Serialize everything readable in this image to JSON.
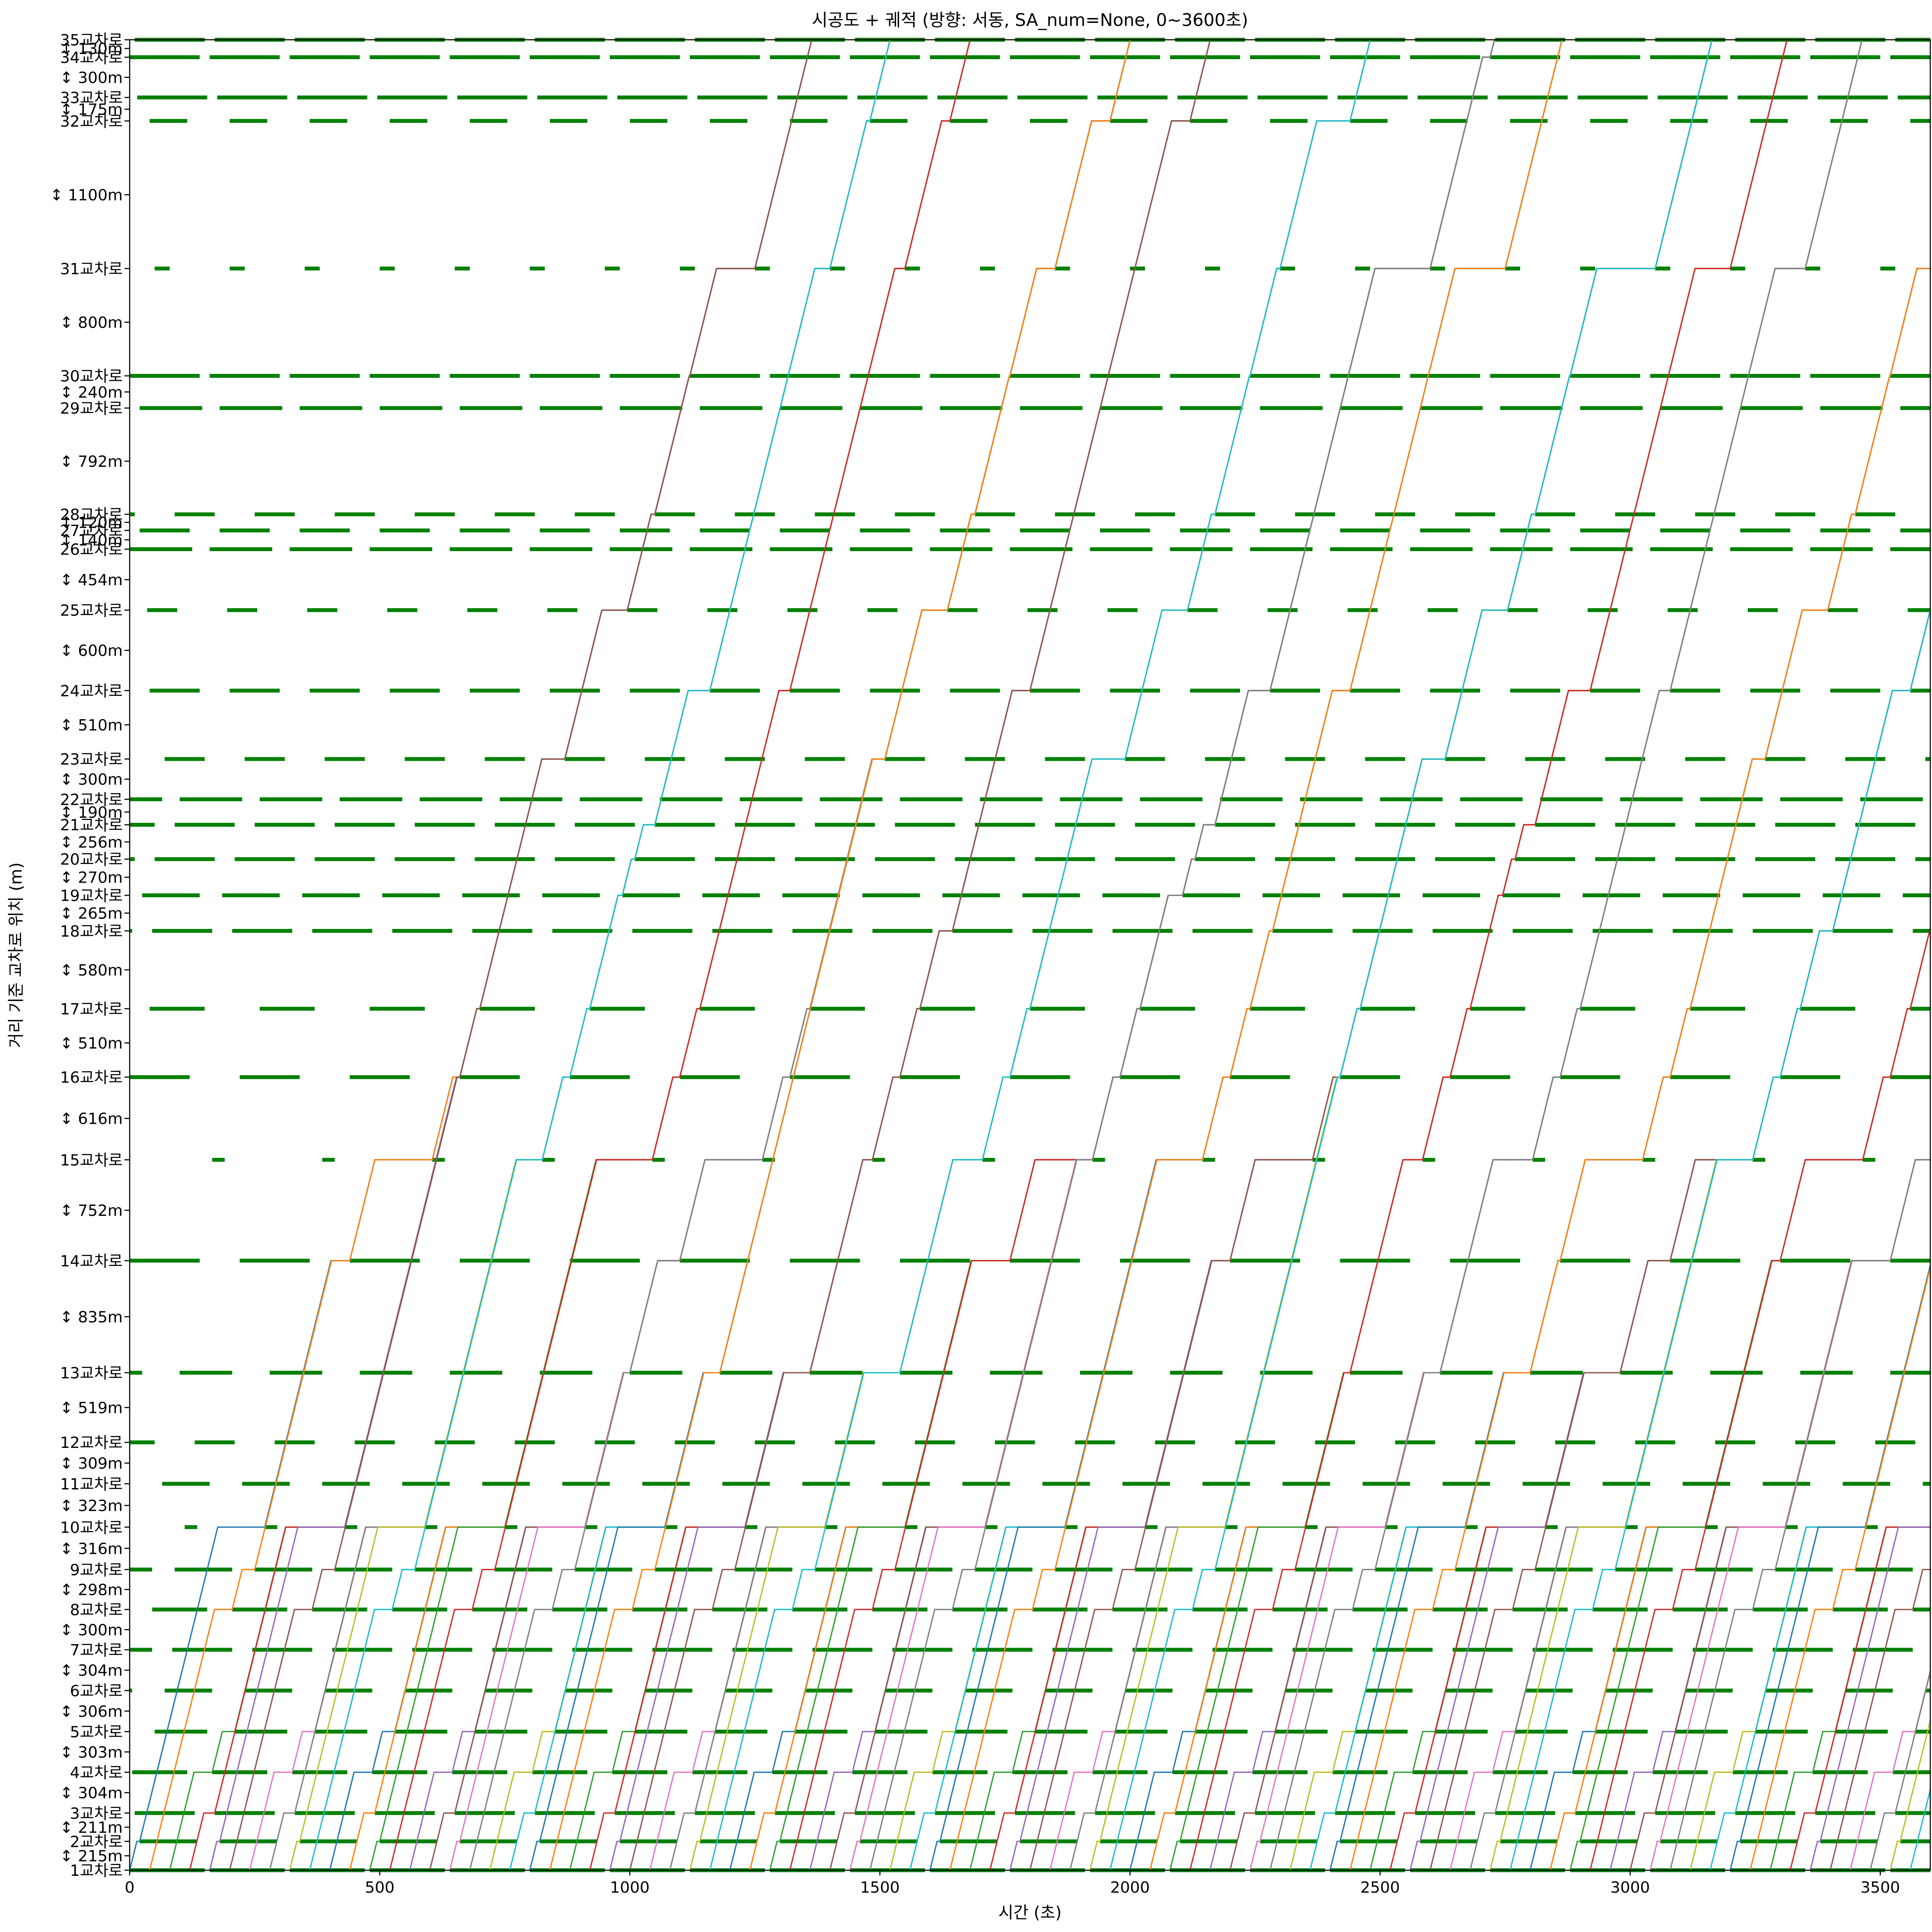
{
  "chart_data": {
    "type": "line",
    "title": "시공도 + 궤적 (방향: 서동, SA_num=None, 0~3600초)",
    "xlabel": "시간 (초)",
    "ylabel": "거리 기준 교차로 위치 (m)",
    "xlim": [
      0,
      3600
    ],
    "x_ticks": [
      0,
      500,
      1000,
      1500,
      2000,
      2500,
      3000,
      3500
    ],
    "grid": false,
    "intersections": [
      {
        "name": "1교차로",
        "pos": 0
      },
      {
        "name": "2교차로",
        "pos": 215
      },
      {
        "name": "3교차로",
        "pos": 426
      },
      {
        "name": "4교차로",
        "pos": 730
      },
      {
        "name": "5교차로",
        "pos": 1033
      },
      {
        "name": "6교차로",
        "pos": 1339
      },
      {
        "name": "7교차로",
        "pos": 1643
      },
      {
        "name": "8교차로",
        "pos": 1943
      },
      {
        "name": "9교차로",
        "pos": 2241
      },
      {
        "name": "10교차로",
        "pos": 2557
      },
      {
        "name": "11교차로",
        "pos": 2880
      },
      {
        "name": "12교차로",
        "pos": 3189
      },
      {
        "name": "13교차로",
        "pos": 3708
      },
      {
        "name": "14교차로",
        "pos": 4543
      },
      {
        "name": "15교차로",
        "pos": 5295
      },
      {
        "name": "16교차로",
        "pos": 5911
      },
      {
        "name": "17교차로",
        "pos": 6421
      },
      {
        "name": "18교차로",
        "pos": 7001
      },
      {
        "name": "19교차로",
        "pos": 7266
      },
      {
        "name": "20교차로",
        "pos": 7536
      },
      {
        "name": "21교차로",
        "pos": 7792
      },
      {
        "name": "22교차로",
        "pos": 7982
      },
      {
        "name": "23교차로",
        "pos": 8282
      },
      {
        "name": "24교차로",
        "pos": 8792
      },
      {
        "name": "25교차로",
        "pos": 9392
      },
      {
        "name": "26교차로",
        "pos": 9846
      },
      {
        "name": "27교차로",
        "pos": 9986
      },
      {
        "name": "28교차로",
        "pos": 10106
      },
      {
        "name": "29교차로",
        "pos": 10898
      },
      {
        "name": "30교차로",
        "pos": 11138
      },
      {
        "name": "31교차로",
        "pos": 11938
      },
      {
        "name": "32교차로",
        "pos": 13038
      },
      {
        "name": "33교차로",
        "pos": 13213
      },
      {
        "name": "34교차로",
        "pos": 13513
      },
      {
        "name": "35교차로",
        "pos": 13643
      }
    ],
    "segment_labels": [
      "↕ 215m",
      "↕ 211m",
      "↕ 304m",
      "↕ 303m",
      "↕ 306m",
      "↕ 304m",
      "↕ 300m",
      "↕ 298m",
      "↕ 316m",
      "↕ 323m",
      "↕ 309m",
      "↕ 519m",
      "↕ 835m",
      "↕ 752m",
      "↕ 616m",
      "↕ 510m",
      "↕ 580m",
      "↕ 265m",
      "↕ 270m",
      "↕ 256m",
      "↕ 190m",
      "↕ 300m",
      "↕ 510m",
      "↕ 600m",
      "↕ 454m",
      "↕ 140m",
      "↕ 120m",
      "↕ 792m",
      "↕ 240m",
      "↕ 800m",
      "↕ 1100m",
      "↕ 175m",
      "↕ 300m",
      "↕ 130m"
    ],
    "signal_green": [
      {
        "k": 0,
        "cycle": 160,
        "green": 150,
        "offset": 0
      },
      {
        "k": 1,
        "cycle": 160,
        "green": 115,
        "offset": 20
      },
      {
        "k": 2,
        "cycle": 160,
        "green": 120,
        "offset": 10
      },
      {
        "k": 3,
        "cycle": 160,
        "green": 110,
        "offset": 5
      },
      {
        "k": 4,
        "cycle": 160,
        "green": 105,
        "offset": 50
      },
      {
        "k": 5,
        "cycle": 160,
        "green": 95,
        "offset": 70
      },
      {
        "k": 6,
        "cycle": 160,
        "green": 120,
        "offset": 85
      },
      {
        "k": 7,
        "cycle": 160,
        "green": 110,
        "offset": 45
      },
      {
        "k": 8,
        "cycle": 160,
        "green": 115,
        "offset": 90
      },
      {
        "k": 9,
        "cycle": 160,
        "green": 25,
        "offset": 110
      },
      {
        "k": 10,
        "cycle": 160,
        "green": 95,
        "offset": 65
      },
      {
        "k": 11,
        "cycle": 160,
        "green": 80,
        "offset": 130
      },
      {
        "k": 12,
        "cycle": 180,
        "green": 105,
        "offset": 100
      },
      {
        "k": 13,
        "cycle": 220,
        "green": 140,
        "offset": 0
      },
      {
        "k": 14,
        "cycle": 220,
        "green": 25,
        "offset": 165
      },
      {
        "k": 15,
        "cycle": 220,
        "green": 120,
        "offset": 0
      },
      {
        "k": 16,
        "cycle": 220,
        "green": 110,
        "offset": 40
      },
      {
        "k": 17,
        "cycle": 160,
        "green": 120,
        "offset": 45
      },
      {
        "k": 18,
        "cycle": 160,
        "green": 115,
        "offset": 25
      },
      {
        "k": 19,
        "cycle": 160,
        "green": 120,
        "offset": 50
      },
      {
        "k": 20,
        "cycle": 160,
        "green": 120,
        "offset": 90
      },
      {
        "k": 21,
        "cycle": 160,
        "green": 125,
        "offset": 100
      },
      {
        "k": 22,
        "cycle": 160,
        "green": 80,
        "offset": 70
      },
      {
        "k": 23,
        "cycle": 160,
        "green": 100,
        "offset": 40
      },
      {
        "k": 24,
        "cycle": 160,
        "green": 60,
        "offset": 35
      },
      {
        "k": 25,
        "cycle": 160,
        "green": 125,
        "offset": 0
      },
      {
        "k": 26,
        "cycle": 160,
        "green": 100,
        "offset": 20
      },
      {
        "k": 27,
        "cycle": 160,
        "green": 80,
        "offset": 90
      },
      {
        "k": 28,
        "cycle": 160,
        "green": 125,
        "offset": 20
      },
      {
        "k": 29,
        "cycle": 160,
        "green": 140,
        "offset": 0
      },
      {
        "k": 30,
        "cycle": 150,
        "green": 30,
        "offset": 50
      },
      {
        "k": 31,
        "cycle": 160,
        "green": 75,
        "offset": 40
      },
      {
        "k": 32,
        "cycle": 160,
        "green": 140,
        "offset": 15
      },
      {
        "k": 33,
        "cycle": 160,
        "green": 140,
        "offset": 0
      },
      {
        "k": 34,
        "cycle": 160,
        "green": 140,
        "offset": 10
      }
    ],
    "signal_color": "#008000",
    "trajectories": {
      "speed_m_per_s": 15.0,
      "depart_start_s": 0,
      "depart_interval_s": 40,
      "depart_count": 90,
      "colors": [
        "#1f77b4",
        "#ff7f0e",
        "#2ca02c",
        "#d62728",
        "#9467bd",
        "#8c564b",
        "#e377c2",
        "#7f7f7f",
        "#bcbd22",
        "#17becf"
      ]
    }
  }
}
